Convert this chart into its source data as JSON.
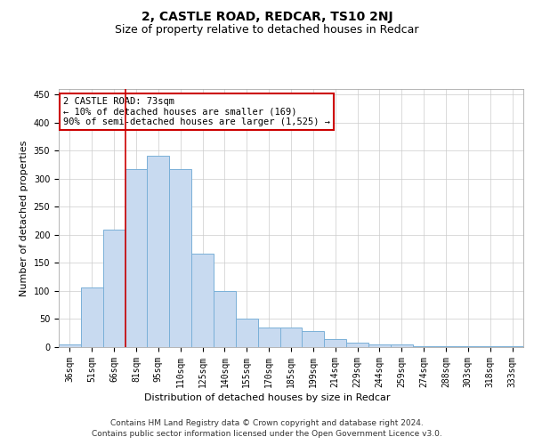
{
  "title": "2, CASTLE ROAD, REDCAR, TS10 2NJ",
  "subtitle": "Size of property relative to detached houses in Redcar",
  "xlabel": "Distribution of detached houses by size in Redcar",
  "ylabel": "Number of detached properties",
  "categories": [
    "36sqm",
    "51sqm",
    "66sqm",
    "81sqm",
    "95sqm",
    "110sqm",
    "125sqm",
    "140sqm",
    "155sqm",
    "170sqm",
    "185sqm",
    "199sqm",
    "214sqm",
    "229sqm",
    "244sqm",
    "259sqm",
    "274sqm",
    "288sqm",
    "303sqm",
    "318sqm",
    "333sqm"
  ],
  "values": [
    5,
    107,
    210,
    317,
    341,
    318,
    167,
    100,
    50,
    35,
    35,
    28,
    15,
    8,
    5,
    5,
    2,
    1,
    1,
    1,
    1
  ],
  "bar_color": "#c8daf0",
  "bar_edge_color": "#7ab0d8",
  "vline_x_index": 2,
  "vline_color": "#cc0000",
  "annotation_text": "2 CASTLE ROAD: 73sqm\n← 10% of detached houses are smaller (169)\n90% of semi-detached houses are larger (1,525) →",
  "annotation_box_color": "#ffffff",
  "annotation_box_edge": "#cc0000",
  "ylim": [
    0,
    460
  ],
  "yticks": [
    0,
    50,
    100,
    150,
    200,
    250,
    300,
    350,
    400,
    450
  ],
  "footer_line1": "Contains HM Land Registry data © Crown copyright and database right 2024.",
  "footer_line2": "Contains public sector information licensed under the Open Government Licence v3.0.",
  "bg_color": "#ffffff",
  "grid_color": "#cccccc",
  "title_fontsize": 10,
  "subtitle_fontsize": 9,
  "tick_fontsize": 7,
  "ylabel_fontsize": 8,
  "xlabel_fontsize": 8,
  "footer_fontsize": 6.5,
  "ann_fontsize": 7.5
}
